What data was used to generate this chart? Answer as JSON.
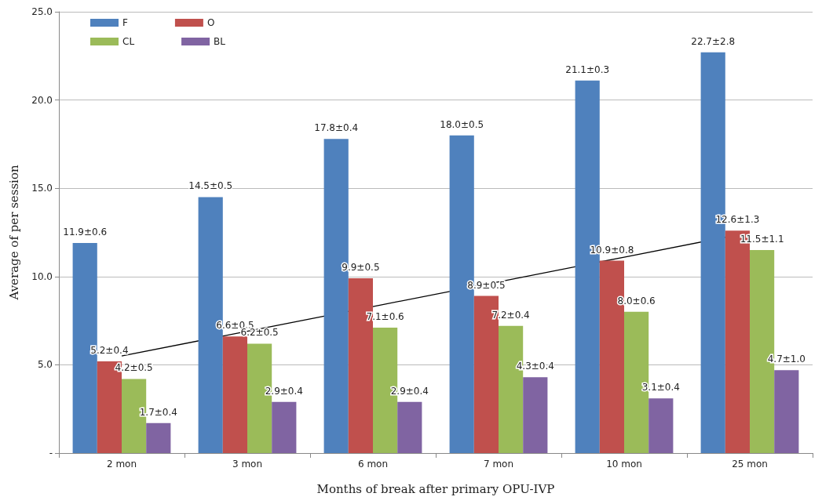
{
  "chart_data": {
    "type": "bar",
    "xlabel": "Months of break after primary OPU-IVP",
    "ylabel": "Average of per session",
    "categories": [
      "2 mon",
      "3 mon",
      "6 mon",
      "7 mon",
      "10 mon",
      "25 mon"
    ],
    "ylim": [
      0,
      25
    ],
    "yticks": [
      {
        "value": 0,
        "label": "-"
      },
      {
        "value": 5,
        "label": "5.0"
      },
      {
        "value": 10,
        "label": "10.0"
      },
      {
        "value": 15,
        "label": "15.0"
      },
      {
        "value": 20,
        "label": "20.0"
      },
      {
        "value": 25,
        "label": "25.0"
      }
    ],
    "grid": "y",
    "legend": "top left",
    "series": [
      {
        "name": "F",
        "color": "#4f81bd",
        "values": [
          11.9,
          14.5,
          17.8,
          18.0,
          21.1,
          22.7
        ],
        "value_labels": [
          "11.9±0.6",
          "14.5±0.5",
          "17.8±0.4",
          "18.0±0.5",
          "21.1±0.3",
          "22.7±2.8"
        ]
      },
      {
        "name": "O",
        "color": "#c0504d",
        "values": [
          5.2,
          6.6,
          9.9,
          8.9,
          10.9,
          12.6
        ],
        "value_labels": [
          "5.2±0.4",
          "6.6±0.5",
          "9.9±0.5",
          "8.9±0.5",
          "10.9±0.8",
          "12.6±1.3"
        ]
      },
      {
        "name": "CL",
        "color": "#9bbb59",
        "values": [
          4.2,
          6.2,
          7.1,
          7.2,
          8.0,
          11.5
        ],
        "value_labels": [
          "4.2±0.5",
          "6.2±0.5",
          "7.1±0.6",
          "7.2±0.4",
          "8.0±0.6",
          "11.5±1.1"
        ]
      },
      {
        "name": "BL",
        "color": "#8064a2",
        "values": [
          1.7,
          2.9,
          2.9,
          4.3,
          3.1,
          4.7
        ],
        "value_labels": [
          "1.7±0.4",
          "2.9±0.4",
          "2.9±0.4",
          "4.3±0.4",
          "3.1±0.4",
          "4.7±1.0"
        ]
      },
      {
        "type": "line",
        "color": "#000000",
        "marker": "none",
        "values": [
          5.5,
          6.9,
          8.3,
          9.7,
          11.1,
          12.5
        ]
      }
    ]
  }
}
